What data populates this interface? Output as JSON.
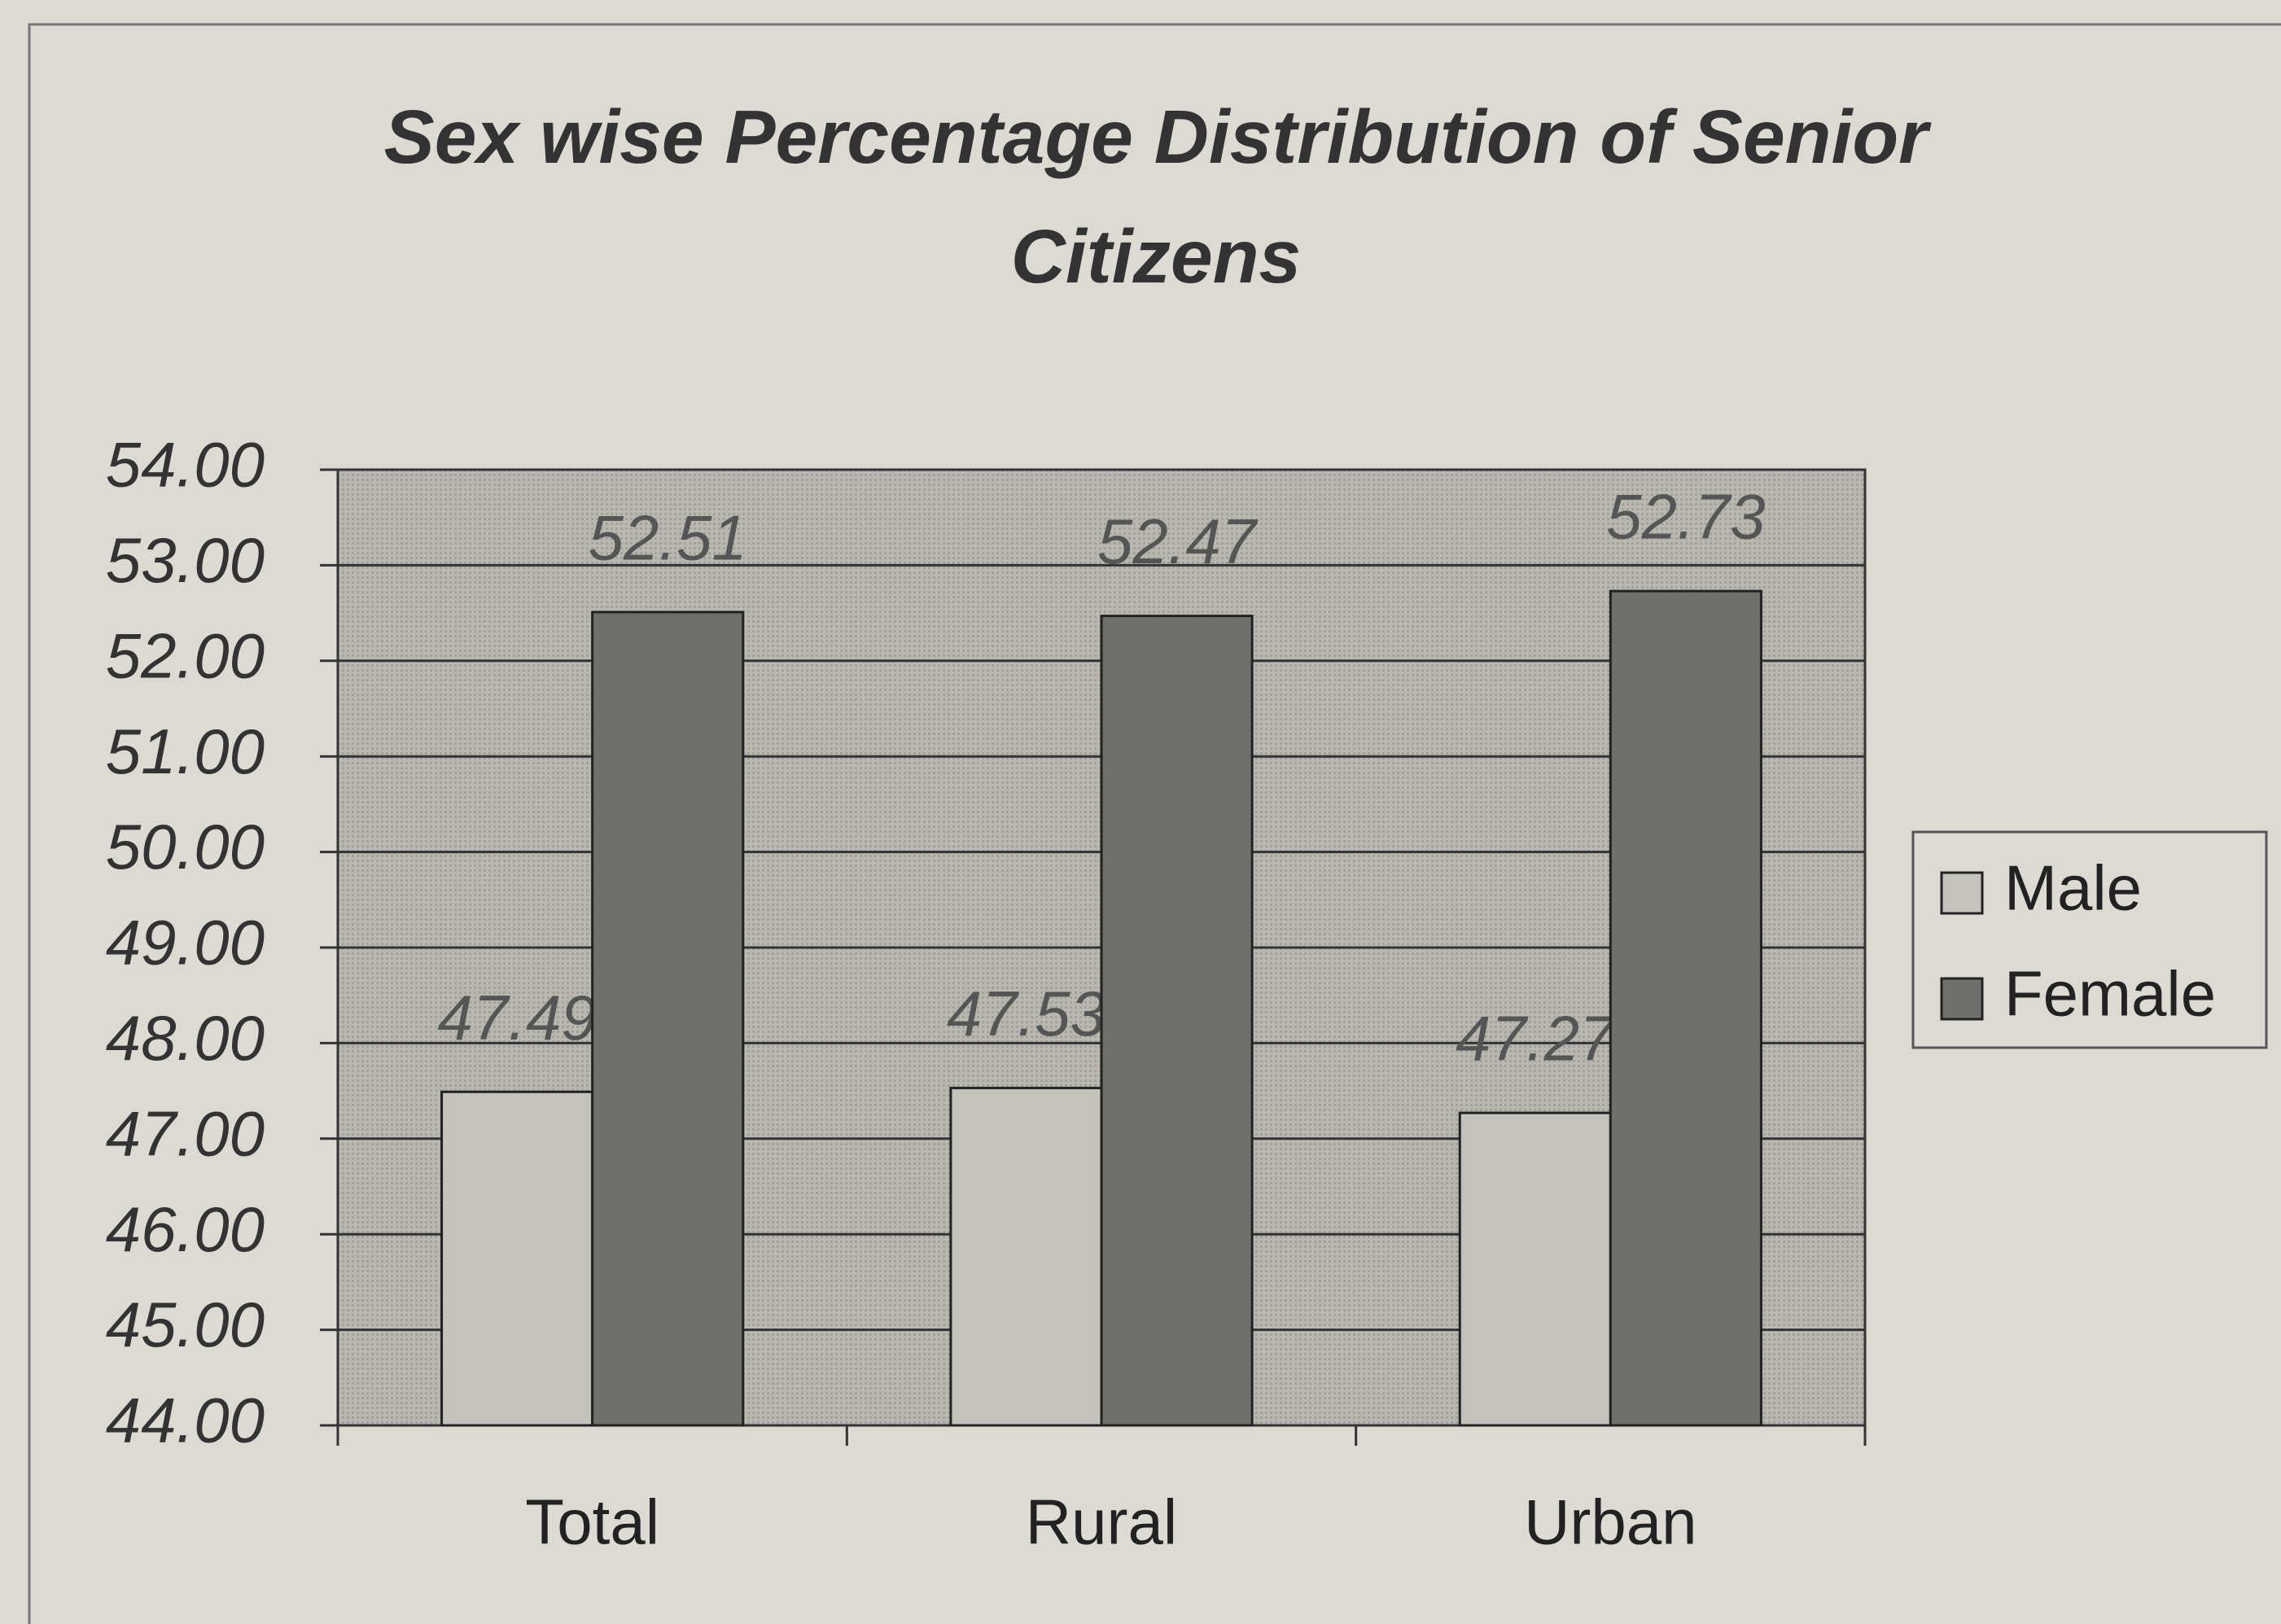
{
  "chart_data": {
    "type": "bar",
    "title": "Sex wise Percentage Distribution of Senior Citizens",
    "categories": [
      "Total",
      "Rural",
      "Urban"
    ],
    "series": [
      {
        "name": "Male",
        "color": "#c4c3bb",
        "values": [
          47.49,
          47.53,
          47.27
        ]
      },
      {
        "name": "Female",
        "color": "#6f6f6b",
        "values": [
          52.51,
          52.47,
          52.73
        ]
      }
    ],
    "ylim": [
      44,
      54
    ],
    "yticks": [
      {
        "value": 44,
        "label": "44.00"
      },
      {
        "value": 45,
        "label": "45.00"
      },
      {
        "value": 46,
        "label": "46.00"
      },
      {
        "value": 47,
        "label": "47.00"
      },
      {
        "value": 48,
        "label": "48.00"
      },
      {
        "value": 49,
        "label": "49.00"
      },
      {
        "value": 50,
        "label": "50.00"
      },
      {
        "value": 51,
        "label": "51.00"
      },
      {
        "value": 52,
        "label": "52.00"
      },
      {
        "value": 53,
        "label": "53.00"
      },
      {
        "value": 54,
        "label": "54.00"
      }
    ],
    "grid": true,
    "legend": "right"
  }
}
